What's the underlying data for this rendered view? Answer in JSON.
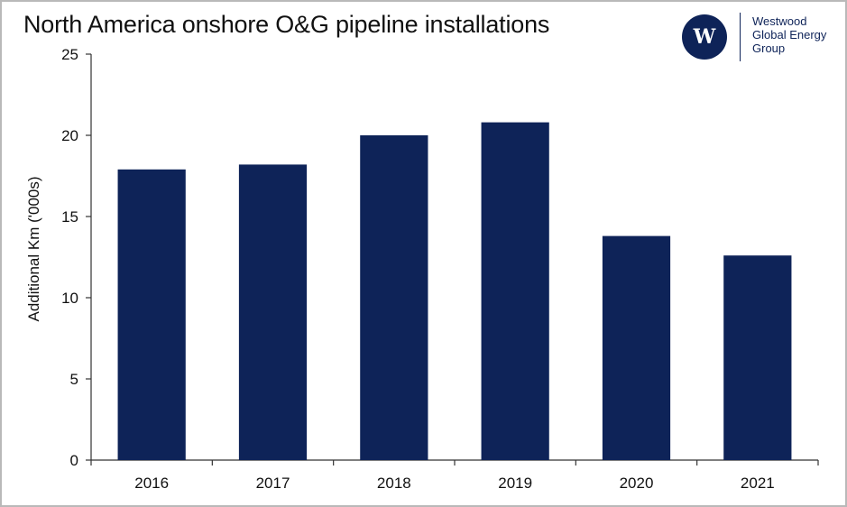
{
  "header": {
    "title": "North America onshore O&G pipeline installations"
  },
  "logo": {
    "mark": "W",
    "lines": [
      "Westwood",
      "Global Energy",
      "Group"
    ]
  },
  "colors": {
    "bar": "#0e2358",
    "axis": "#333333",
    "text": "#111111"
  },
  "chart_data": {
    "type": "bar",
    "title": "North America onshore O&G pipeline installations",
    "xlabel": "",
    "ylabel": "Additional Km ('000s)",
    "categories": [
      "2016",
      "2017",
      "2018",
      "2019",
      "2020",
      "2021"
    ],
    "values": [
      17.9,
      18.2,
      20.0,
      20.8,
      13.8,
      12.6
    ],
    "ylim": [
      0,
      25
    ],
    "yticks": [
      0,
      5,
      10,
      15,
      20,
      25
    ],
    "grid": false,
    "legend": "none"
  }
}
